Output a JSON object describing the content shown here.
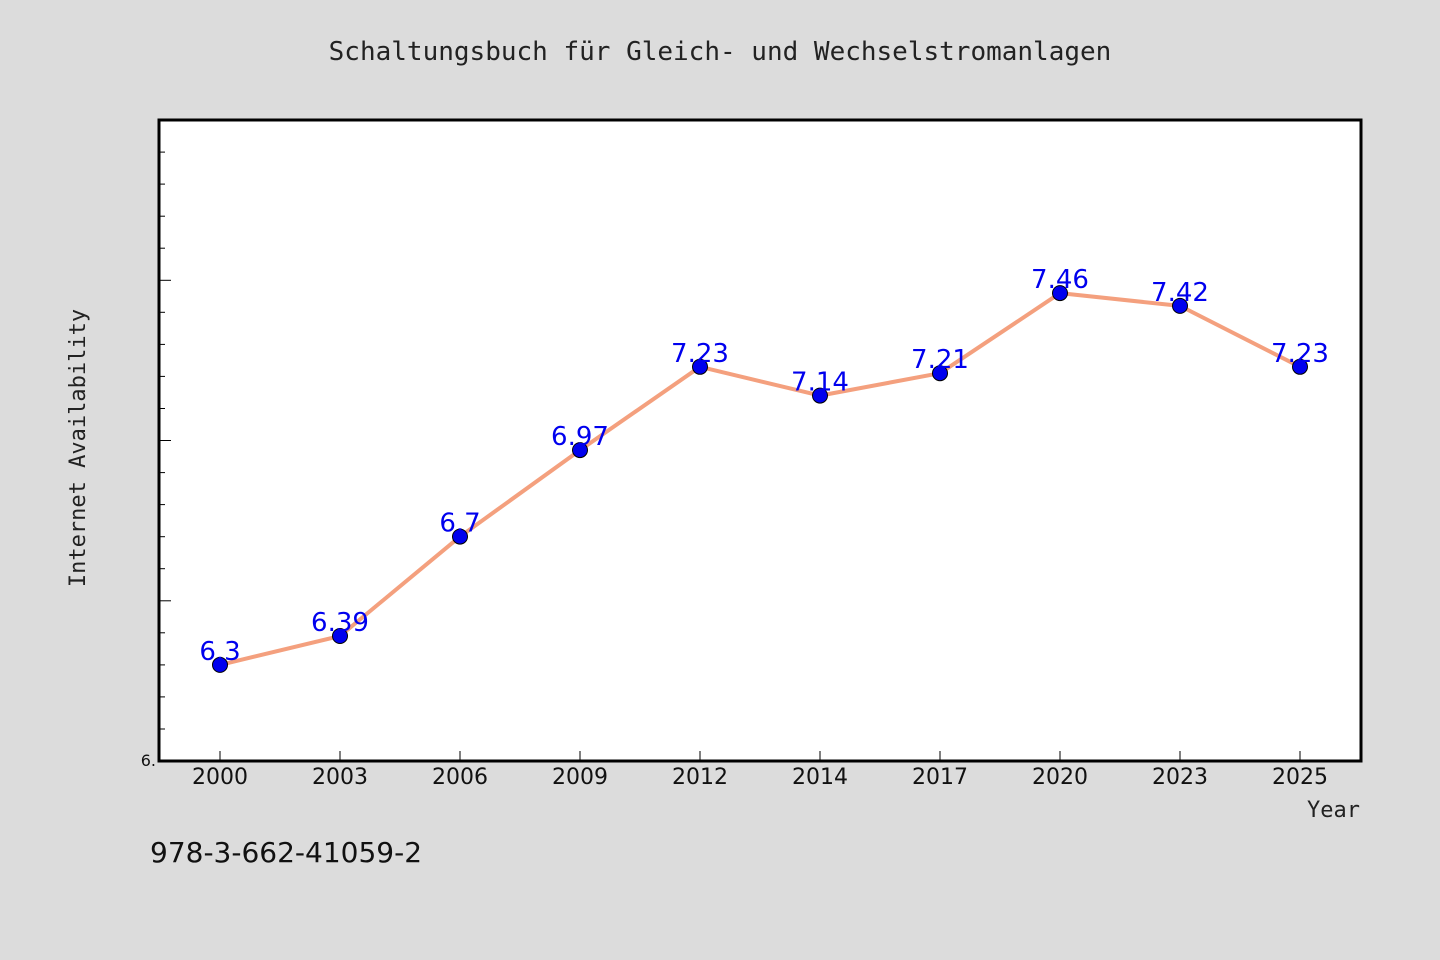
{
  "chart_data": {
    "type": "line",
    "title": "Schaltungsbuch für Gleich- und Wechselstromanlagen",
    "xlabel": "Year",
    "ylabel": "Internet Availability",
    "ylim": [
      6.0,
      8.0
    ],
    "y_tick_labels": [
      "6."
    ],
    "grid": false,
    "categories": [
      "2000",
      "2003",
      "2006",
      "2009",
      "2012",
      "2014",
      "2017",
      "2020",
      "2023",
      "2025"
    ],
    "series": [
      {
        "values": [
          6.3,
          6.39,
          6.7,
          6.97,
          7.23,
          7.14,
          7.21,
          7.46,
          7.42,
          7.23
        ],
        "labels": [
          "6.3",
          "6.39",
          "6.7",
          "6.97",
          "7.23",
          "7.14",
          "7.21",
          "7.46",
          "7.42",
          "7.23"
        ]
      }
    ],
    "colors": {
      "line": "#f4a07e",
      "marker": "#0000ee",
      "marker_edge": "#000000",
      "data_label": "#0000ee",
      "plot_bg": "#ffffff",
      "page_bg": "#dcdcdc"
    }
  },
  "footer": {
    "isbn": "978-3-662-41059-2"
  }
}
